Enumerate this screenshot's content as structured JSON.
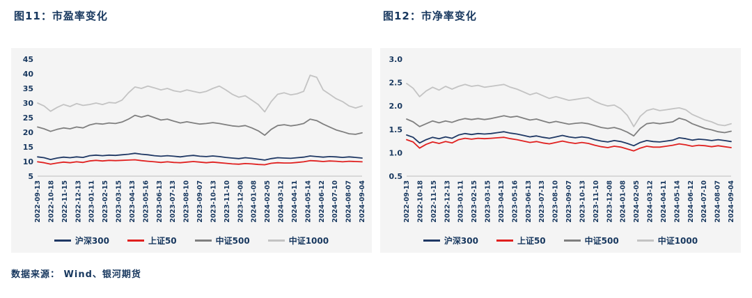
{
  "page": {
    "source_label": "数据来源： Wind、银河期货"
  },
  "chart_data": [
    {
      "type": "line",
      "title": "图11：市盈率变化",
      "xlabel": "",
      "ylabel": "",
      "ylim": [
        5,
        45
      ],
      "yticks": [
        5,
        10,
        15,
        20,
        25,
        30,
        35,
        40,
        45
      ],
      "ytick_decimals": 0,
      "grid": false,
      "legend_position": "bottom",
      "x_labels": [
        "2022-09-13",
        "2022-10-18",
        "2022-11-15",
        "2022-12-13",
        "2023-01-11",
        "2023-02-15",
        "2023-03-15",
        "2023-04-13",
        "2023-05-16",
        "2023-06-13",
        "2023-07-13",
        "2023-08-10",
        "2023-09-07",
        "2023-10-13",
        "2023-11-10",
        "2023-12-08",
        "2024-01-08",
        "2024-02-05",
        "2024-03-12",
        "2024-04-11",
        "2024-05-14",
        "2024-06-12",
        "2024-07-10",
        "2024-08-07",
        "2024-09-04"
      ],
      "series": [
        {
          "name": "沪深300",
          "color": "#1f3864",
          "values": [
            11.6,
            11.3,
            10.7,
            11.2,
            11.5,
            11.3,
            11.6,
            11.4,
            12.0,
            12.2,
            12.0,
            12.2,
            12.1,
            12.3,
            12.5,
            12.8,
            12.5,
            12.3,
            12.0,
            11.8,
            12.0,
            11.8,
            11.6,
            11.9,
            12.1,
            11.8,
            11.7,
            11.9,
            11.7,
            11.4,
            11.2,
            11.0,
            11.3,
            11.1,
            10.8,
            10.5,
            11.0,
            11.3,
            11.2,
            11.1,
            11.3,
            11.5,
            11.9,
            11.7,
            11.5,
            11.7,
            11.6,
            11.4,
            11.6,
            11.4,
            11.2
          ]
        },
        {
          "name": "上证50",
          "color": "#e0201f",
          "values": [
            9.9,
            9.6,
            9.1,
            9.5,
            9.8,
            9.6,
            9.9,
            9.7,
            10.2,
            10.4,
            10.2,
            10.4,
            10.3,
            10.4,
            10.5,
            10.6,
            10.3,
            10.1,
            9.9,
            9.7,
            9.9,
            9.7,
            9.6,
            9.8,
            10.0,
            9.8,
            9.6,
            9.8,
            9.6,
            9.4,
            9.2,
            9.1,
            9.3,
            9.2,
            9.0,
            8.9,
            9.4,
            9.6,
            9.5,
            9.5,
            9.7,
            9.9,
            10.3,
            10.2,
            10.0,
            10.2,
            10.1,
            9.9,
            10.1,
            10.0,
            9.9
          ]
        },
        {
          "name": "中证500",
          "color": "#7f7f7f",
          "values": [
            21.8,
            21.2,
            20.3,
            21.0,
            21.5,
            21.2,
            21.8,
            21.5,
            22.5,
            23.0,
            22.8,
            23.2,
            23.0,
            23.5,
            24.5,
            25.8,
            25.2,
            25.8,
            25.0,
            24.2,
            24.5,
            23.8,
            23.2,
            23.6,
            23.2,
            22.8,
            23.0,
            23.3,
            23.0,
            22.6,
            22.2,
            22.0,
            22.3,
            21.5,
            20.5,
            19.0,
            21.0,
            22.3,
            22.6,
            22.2,
            22.5,
            23.0,
            24.5,
            24.0,
            22.8,
            21.8,
            20.8,
            20.2,
            19.5,
            19.3,
            19.8
          ]
        },
        {
          "name": "中证1000",
          "color": "#c3c3c3",
          "values": [
            30.0,
            29.0,
            27.2,
            28.5,
            29.5,
            28.8,
            29.8,
            29.2,
            29.5,
            30.0,
            29.5,
            30.2,
            30.0,
            31.0,
            33.5,
            35.5,
            35.0,
            35.8,
            35.2,
            34.5,
            35.0,
            34.2,
            33.8,
            34.5,
            34.0,
            33.5,
            34.0,
            35.0,
            35.8,
            34.5,
            33.0,
            32.0,
            32.5,
            31.0,
            29.5,
            27.0,
            30.5,
            33.0,
            33.5,
            32.8,
            33.2,
            34.0,
            39.5,
            38.8,
            34.5,
            33.0,
            31.5,
            30.5,
            29.0,
            28.3,
            29.0
          ]
        }
      ]
    },
    {
      "type": "line",
      "title": "图12：市净率变化",
      "xlabel": "",
      "ylabel": "",
      "ylim": [
        0.5,
        3.0
      ],
      "yticks": [
        0.5,
        1.0,
        1.5,
        2.0,
        2.5,
        3.0
      ],
      "ytick_decimals": 1,
      "grid": false,
      "legend_position": "bottom",
      "x_labels": [
        "2022-09-13",
        "2022-10-18",
        "2022-11-15",
        "2022-12-13",
        "2023-01-11",
        "2023-02-15",
        "2023-03-15",
        "2023-04-13",
        "2023-05-16",
        "2023-06-13",
        "2023-07-13",
        "2023-08-10",
        "2023-09-07",
        "2023-10-13",
        "2023-11-10",
        "2023-12-08",
        "2024-01-08",
        "2024-02-05",
        "2024-03-12",
        "2024-04-11",
        "2024-05-14",
        "2024-06-12",
        "2024-07-10",
        "2024-08-07",
        "2024-09-04"
      ],
      "series": [
        {
          "name": "沪深300",
          "color": "#1f3864",
          "values": [
            1.38,
            1.33,
            1.21,
            1.28,
            1.33,
            1.3,
            1.34,
            1.31,
            1.38,
            1.41,
            1.39,
            1.41,
            1.4,
            1.41,
            1.43,
            1.45,
            1.42,
            1.4,
            1.37,
            1.34,
            1.36,
            1.33,
            1.31,
            1.34,
            1.37,
            1.34,
            1.32,
            1.34,
            1.32,
            1.28,
            1.25,
            1.23,
            1.26,
            1.24,
            1.2,
            1.15,
            1.22,
            1.26,
            1.24,
            1.23,
            1.25,
            1.27,
            1.32,
            1.3,
            1.27,
            1.29,
            1.28,
            1.26,
            1.28,
            1.26,
            1.24
          ]
        },
        {
          "name": "上证50",
          "color": "#e0201f",
          "values": [
            1.28,
            1.23,
            1.1,
            1.18,
            1.23,
            1.2,
            1.24,
            1.21,
            1.28,
            1.31,
            1.29,
            1.31,
            1.3,
            1.31,
            1.32,
            1.33,
            1.3,
            1.28,
            1.25,
            1.22,
            1.24,
            1.21,
            1.19,
            1.22,
            1.25,
            1.22,
            1.2,
            1.22,
            1.2,
            1.16,
            1.13,
            1.11,
            1.14,
            1.12,
            1.08,
            1.04,
            1.1,
            1.14,
            1.12,
            1.12,
            1.14,
            1.16,
            1.19,
            1.17,
            1.14,
            1.16,
            1.15,
            1.13,
            1.15,
            1.13,
            1.11
          ]
        },
        {
          "name": "中证500",
          "color": "#7f7f7f",
          "values": [
            1.72,
            1.66,
            1.56,
            1.62,
            1.68,
            1.64,
            1.68,
            1.65,
            1.7,
            1.73,
            1.71,
            1.73,
            1.71,
            1.73,
            1.76,
            1.79,
            1.76,
            1.78,
            1.74,
            1.7,
            1.72,
            1.68,
            1.64,
            1.67,
            1.64,
            1.61,
            1.63,
            1.64,
            1.62,
            1.58,
            1.54,
            1.52,
            1.54,
            1.5,
            1.44,
            1.36,
            1.52,
            1.62,
            1.64,
            1.62,
            1.64,
            1.66,
            1.74,
            1.7,
            1.62,
            1.57,
            1.52,
            1.49,
            1.45,
            1.43,
            1.46
          ]
        },
        {
          "name": "中证1000",
          "color": "#c3c3c3",
          "values": [
            2.48,
            2.38,
            2.2,
            2.32,
            2.4,
            2.34,
            2.42,
            2.36,
            2.42,
            2.46,
            2.42,
            2.44,
            2.4,
            2.42,
            2.44,
            2.46,
            2.4,
            2.36,
            2.3,
            2.24,
            2.28,
            2.22,
            2.16,
            2.2,
            2.16,
            2.12,
            2.14,
            2.16,
            2.18,
            2.1,
            2.04,
            2.0,
            2.02,
            1.94,
            1.8,
            1.56,
            1.78,
            1.9,
            1.94,
            1.9,
            1.92,
            1.94,
            1.96,
            1.92,
            1.82,
            1.76,
            1.7,
            1.66,
            1.6,
            1.58,
            1.62
          ]
        }
      ]
    }
  ]
}
